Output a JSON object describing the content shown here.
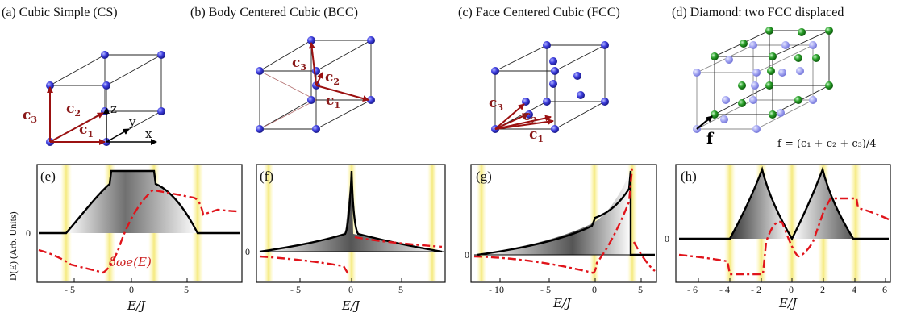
{
  "captions": {
    "a": "(a) Cubic Simple (CS)",
    "b": "(b) Body Centered Cubic (BCC)",
    "c": "(c) Face Centered Cubic (FCC)",
    "d": "(d) Diamond: two FCC displaced"
  },
  "vectors": {
    "c_letter": "c",
    "sub1": "1",
    "sub2": "2",
    "sub3": "3",
    "x": "x",
    "y": "y",
    "z": "z",
    "f": "f"
  },
  "diamond_formula": "f = (c₁ + c₂ + c₃)/4",
  "panels": {
    "e": {
      "label": "(e)",
      "ticks": [
        "- 5",
        "0",
        "5"
      ],
      "zero": "0",
      "xlabel": "E/J",
      "ylabel": "D(E) (Arb. Units)",
      "red_label": "δωe(E)"
    },
    "f": {
      "label": "(f)",
      "ticks": [
        "- 5",
        "0",
        "5"
      ],
      "zero": "0",
      "xlabel": "E/J"
    },
    "g": {
      "label": "(g)",
      "ticks": [
        "- 10",
        "- 5",
        "0",
        "5"
      ],
      "zero": "0",
      "xlabel": "E/J"
    },
    "h": {
      "label": "(h)",
      "ticks": [
        "- 6",
        "- 4",
        "- 2",
        "0",
        "2",
        "4",
        "6"
      ],
      "zero": "0",
      "xlabel": "E/J"
    }
  },
  "chart_data": [
    {
      "type": "line",
      "panel": "e",
      "xlim": [
        -8,
        8
      ],
      "band_edges": [
        -6,
        -2,
        2,
        6
      ],
      "series": [
        {
          "name": "D(E)",
          "x": [
            -6,
            -4,
            -2,
            0,
            2,
            4,
            6
          ],
          "y": [
            0,
            0.45,
            0.95,
            0.95,
            0.95,
            0.45,
            0
          ]
        },
        {
          "name": "δωe(E)",
          "x": [
            -8,
            -6,
            -2,
            0,
            2,
            4,
            6,
            8
          ],
          "y": [
            -0.3,
            -0.45,
            -0.8,
            0.05,
            0.6,
            0.55,
            0.35,
            -0.35
          ]
        }
      ]
    },
    {
      "type": "line",
      "panel": "f",
      "xlim": [
        -9,
        9
      ],
      "band_edges": [
        -8,
        0,
        8
      ],
      "series": [
        {
          "name": "D(E)",
          "x": [
            -8,
            -4,
            -1,
            0,
            1,
            4,
            8
          ],
          "y": [
            0,
            0.08,
            0.3,
            1.0,
            0.3,
            0.08,
            0
          ]
        }
      ]
    },
    {
      "type": "line",
      "panel": "g",
      "xlim": [
        -13,
        6
      ],
      "band_edges": [
        -12,
        0,
        4
      ],
      "series": [
        {
          "name": "D(E)",
          "x": [
            -12,
            -8,
            -4,
            0,
            2,
            4
          ],
          "y": [
            0,
            0.06,
            0.18,
            0.45,
            0.65,
            1.0
          ]
        }
      ]
    },
    {
      "type": "line",
      "panel": "h",
      "xlim": [
        -6.5,
        6.5
      ],
      "band_edges": [
        -4,
        -2,
        0,
        2,
        4
      ],
      "series": [
        {
          "name": "D(E)",
          "x": [
            -4,
            -2,
            0,
            2,
            4
          ],
          "y": [
            0,
            1.0,
            0,
            1.0,
            0
          ]
        }
      ]
    }
  ]
}
